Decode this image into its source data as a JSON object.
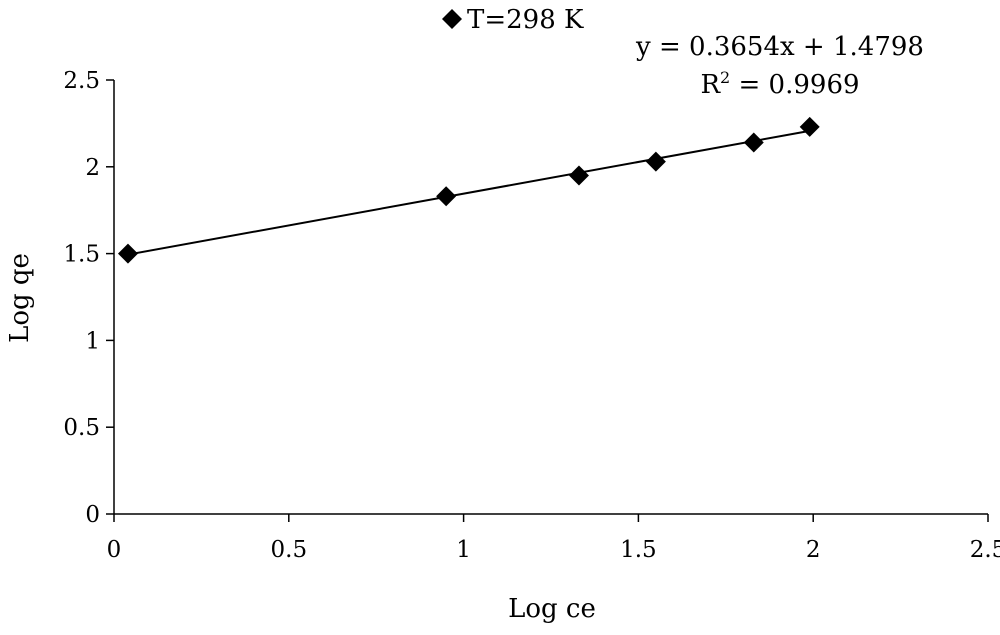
{
  "chart_data": {
    "type": "scatter",
    "xlabel": "Log ce",
    "ylabel": "Log qe",
    "xlim": [
      0,
      2.5
    ],
    "ylim": [
      0,
      2.5
    ],
    "x_ticks": [
      "0",
      "0.5",
      "1",
      "1.5",
      "2",
      "2.5"
    ],
    "y_ticks": [
      "0",
      "0.5",
      "1",
      "1.5",
      "2",
      "2.5"
    ],
    "grid": false,
    "legend_position": "top-center",
    "series": [
      {
        "name": "T=298 K",
        "marker": "diamond",
        "color": "#000000",
        "x": [
          0.04,
          0.95,
          1.33,
          1.55,
          1.83,
          1.99
        ],
        "y": [
          1.5,
          1.83,
          1.95,
          2.03,
          2.14,
          2.23
        ]
      }
    ],
    "trendline": {
      "slope": 0.3654,
      "intercept": 1.4798,
      "x_range": [
        0.04,
        1.99
      ],
      "equation_label": "y = 0.3654x + 1.4798",
      "r2_prefix": "R",
      "r2_sup": "2",
      "r2_value": " = 0.9969"
    }
  }
}
